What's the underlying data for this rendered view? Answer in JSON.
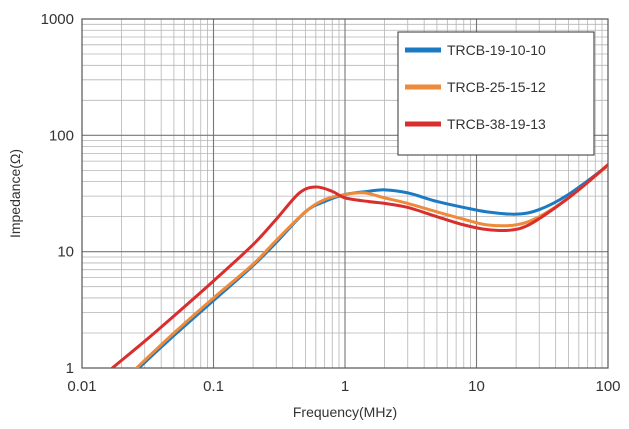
{
  "chart_data": {
    "type": "line",
    "xlabel": "Frequency(MHz)",
    "ylabel": "Impedance(Ω)",
    "x_scale": "log",
    "y_scale": "log",
    "xlim": [
      0.01,
      100
    ],
    "ylim": [
      1,
      1000
    ],
    "x_ticks": [
      "0.01",
      "0.1",
      "1",
      "10",
      "100"
    ],
    "y_ticks": [
      "1",
      "10",
      "100",
      "1000"
    ],
    "grid": true,
    "legend_position": "top-right",
    "series": [
      {
        "name": "TRCB-19-10-10",
        "color": "#1a7ac4",
        "points": [
          [
            0.027,
            1.0
          ],
          [
            0.05,
            1.9
          ],
          [
            0.1,
            3.8
          ],
          [
            0.2,
            7.6
          ],
          [
            0.3,
            12
          ],
          [
            0.5,
            22
          ],
          [
            0.7,
            27
          ],
          [
            1.0,
            31
          ],
          [
            1.5,
            33
          ],
          [
            2.0,
            34
          ],
          [
            3.0,
            32
          ],
          [
            5.0,
            27
          ],
          [
            8.0,
            24
          ],
          [
            12.0,
            22
          ],
          [
            20.0,
            21
          ],
          [
            30.0,
            23
          ],
          [
            50.0,
            31
          ],
          [
            100.0,
            55
          ]
        ]
      },
      {
        "name": "TRCB-25-15-12",
        "color": "#ee8a3a",
        "points": [
          [
            0.026,
            1.0
          ],
          [
            0.05,
            2.0
          ],
          [
            0.1,
            4.0
          ],
          [
            0.2,
            7.8
          ],
          [
            0.3,
            12.5
          ],
          [
            0.5,
            22
          ],
          [
            0.7,
            28
          ],
          [
            1.0,
            31
          ],
          [
            1.4,
            32
          ],
          [
            2.0,
            29
          ],
          [
            3.0,
            26
          ],
          [
            5.0,
            22
          ],
          [
            8.0,
            19
          ],
          [
            12.0,
            17
          ],
          [
            20.0,
            17
          ],
          [
            30.0,
            20
          ],
          [
            50.0,
            29
          ],
          [
            100.0,
            55
          ]
        ]
      },
      {
        "name": "TRCB-38-19-13",
        "color": "#d92e2e",
        "points": [
          [
            0.017,
            1.0
          ],
          [
            0.03,
            1.7
          ],
          [
            0.05,
            2.8
          ],
          [
            0.1,
            5.6
          ],
          [
            0.2,
            11.5
          ],
          [
            0.3,
            19
          ],
          [
            0.45,
            32
          ],
          [
            0.6,
            36
          ],
          [
            0.8,
            33
          ],
          [
            1.0,
            29
          ],
          [
            1.5,
            27
          ],
          [
            2.0,
            26
          ],
          [
            3.0,
            24
          ],
          [
            5.0,
            20
          ],
          [
            8.0,
            17
          ],
          [
            12.0,
            15.5
          ],
          [
            18.0,
            15.3
          ],
          [
            25.0,
            17
          ],
          [
            40.0,
            24
          ],
          [
            60.0,
            34
          ],
          [
            100.0,
            56
          ]
        ]
      }
    ]
  }
}
